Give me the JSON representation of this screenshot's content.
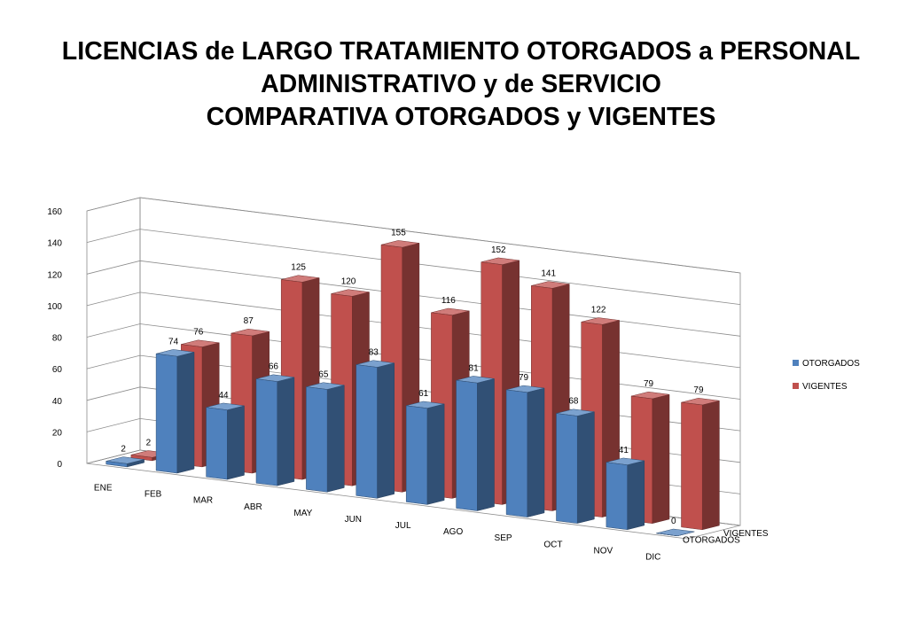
{
  "title": {
    "line1": "LICENCIAS de LARGO TRATAMIENTO OTORGADOS a PERSONAL",
    "line2": "ADMINISTRATIVO y de SERVICIO",
    "line3": "COMPARATIVA OTORGADOS y VIGENTES"
  },
  "chart_data": {
    "type": "bar",
    "categories": [
      "ENE",
      "FEB",
      "MAR",
      "ABR",
      "MAY",
      "JUN",
      "JUL",
      "AGO",
      "SEP",
      "OCT",
      "NOV",
      "DIC"
    ],
    "series": [
      {
        "name": "OTORGADOS",
        "values": [
          2,
          74,
          44,
          66,
          65,
          83,
          61,
          81,
          79,
          68,
          41,
          0
        ],
        "color": "#4f81bd"
      },
      {
        "name": "VIGENTES",
        "values": [
          2,
          76,
          87,
          125,
          120,
          155,
          116,
          152,
          141,
          122,
          79,
          79
        ],
        "color": "#c0504d"
      }
    ],
    "yticks": [
      "0",
      "20",
      "40",
      "60",
      "80",
      "100",
      "120",
      "140",
      "160"
    ],
    "ylim": [
      0,
      160
    ],
    "depth_labels": [
      "VIGENTES",
      "OTORGADOS"
    ],
    "legend": [
      "OTORGADOS",
      "VIGENTES"
    ],
    "legend_position": "right",
    "grid": true,
    "style": "3d-column"
  }
}
